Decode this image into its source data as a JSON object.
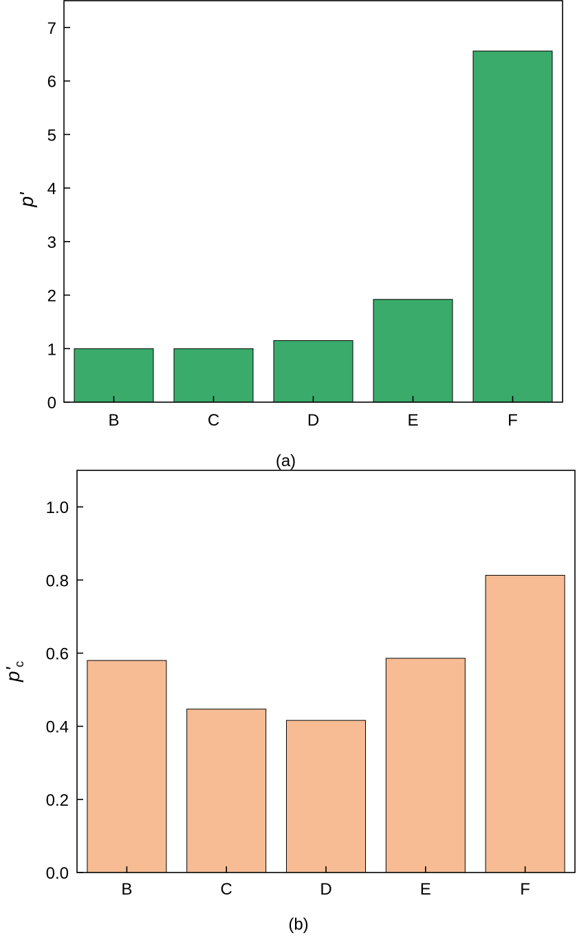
{
  "chart_data": [
    {
      "type": "bar",
      "caption": "(a)",
      "ylabel": "p'",
      "ylabel_subscript": "",
      "categories": [
        "B",
        "C",
        "D",
        "E",
        "F"
      ],
      "values": [
        1.0,
        1.0,
        1.15,
        1.92,
        6.56
      ],
      "ylim": [
        0,
        7.5
      ],
      "yticks": [
        0,
        1,
        2,
        3,
        4,
        5,
        6,
        7
      ],
      "ytick_labels": [
        "0",
        "1",
        "2",
        "3",
        "4",
        "5",
        "6",
        "7"
      ],
      "bar_color": "#3aab6b",
      "grid": false,
      "legend": "none"
    },
    {
      "type": "bar",
      "caption": "(b)",
      "ylabel": "p'",
      "ylabel_subscript": "c",
      "categories": [
        "B",
        "C",
        "D",
        "E",
        "F"
      ],
      "values": [
        0.58,
        0.447,
        0.416,
        0.586,
        0.813
      ],
      "ylim": [
        0,
        1.1
      ],
      "yticks": [
        0,
        0.2,
        0.4,
        0.6,
        0.8,
        1.0
      ],
      "ytick_labels": [
        "0.0",
        "0.2",
        "0.4",
        "0.6",
        "0.8",
        "1.0"
      ],
      "bar_color": "#f7bc94",
      "grid": false,
      "legend": "none"
    }
  ]
}
